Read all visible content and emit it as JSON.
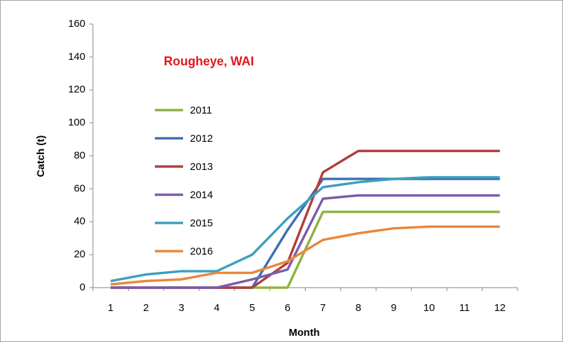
{
  "chart_data": {
    "type": "line",
    "title": "Rougheye, WAI",
    "title_color": "#e3141b",
    "x_label": "Month",
    "y_label": "Catch (t)",
    "x": [
      1,
      2,
      3,
      4,
      5,
      6,
      7,
      8,
      9,
      10,
      11,
      12
    ],
    "xlim": [
      0.5,
      12.5
    ],
    "xticks": [
      1,
      2,
      3,
      4,
      5,
      6,
      7,
      8,
      9,
      10,
      11,
      12
    ],
    "ylim": [
      0,
      160
    ],
    "yticks": [
      0,
      20,
      40,
      60,
      80,
      100,
      120,
      140,
      160
    ],
    "grid": false,
    "legend": "upper left",
    "series": [
      {
        "name": "2011",
        "color": "#8db33f",
        "values": [
          0,
          0,
          0,
          0,
          0,
          0,
          46,
          46,
          46,
          46,
          46,
          46
        ]
      },
      {
        "name": "2012",
        "color": "#3f6eb5",
        "values": [
          0,
          0,
          0,
          0,
          0,
          35,
          66,
          66,
          66,
          66,
          66,
          66
        ]
      },
      {
        "name": "2013",
        "color": "#b33c3a",
        "values": [
          0,
          0,
          0,
          0,
          0,
          15,
          70,
          83,
          83,
          83,
          83,
          83
        ]
      },
      {
        "name": "2014",
        "color": "#7b5ca8",
        "values": [
          0,
          0,
          0,
          0,
          5,
          11,
          54,
          56,
          56,
          56,
          56,
          56
        ]
      },
      {
        "name": "2015",
        "color": "#3ca0bc",
        "values": [
          4,
          8,
          10,
          10,
          20,
          42,
          61,
          64,
          66,
          67,
          67,
          67
        ]
      },
      {
        "name": "2016",
        "color": "#ea873b",
        "values": [
          2,
          4,
          5,
          9,
          9,
          16,
          29,
          33,
          36,
          37,
          37,
          37
        ]
      }
    ]
  }
}
